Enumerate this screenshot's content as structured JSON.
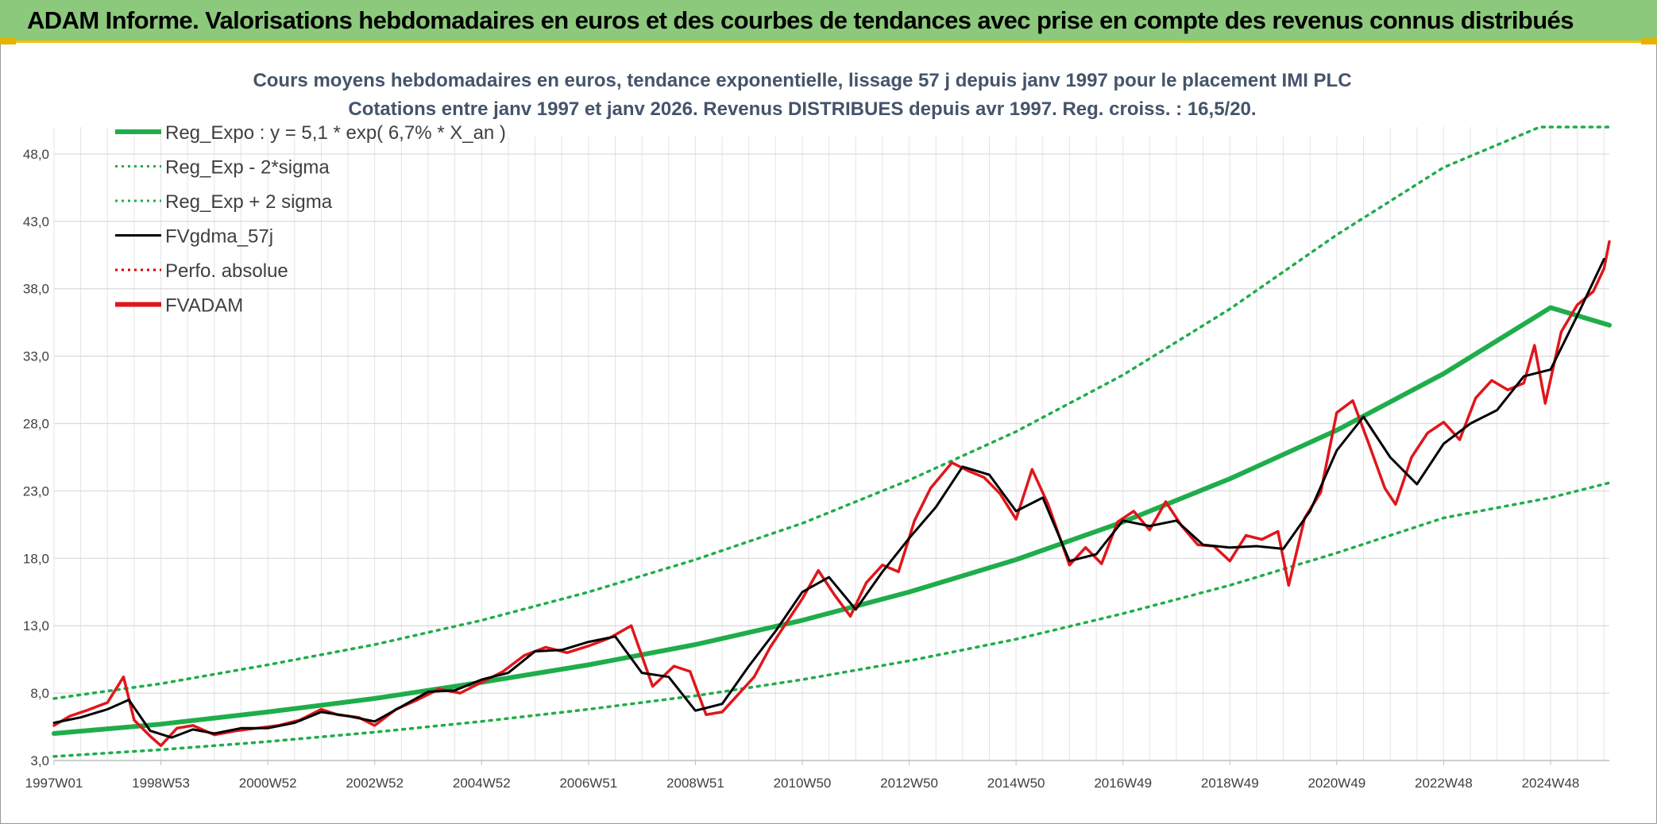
{
  "header": {
    "title": "ADAM Informe. Valorisations hebdomadaires en euros et des courbes de tendances avec prise en compte des revenus connus distribués"
  },
  "chart_data": {
    "type": "line",
    "title": "Cours moyens hebdomadaires en euros, tendance exponentielle, lissage 57 j depuis janv 1997 pour le placement IMI PLC",
    "subtitle": "Cotations entre janv 1997 et janv 2026. Revenus DISTRIBUES depuis avr 1997. Reg. croiss. : 16,5/20.",
    "xlabel": "",
    "ylabel": "",
    "ylim": [
      3.0,
      50.0
    ],
    "xlim": [
      1997.0,
      2026.1
    ],
    "y_ticks": [
      "3,0",
      "8,0",
      "13,0",
      "18,0",
      "23,0",
      "28,0",
      "33,0",
      "38,0",
      "43,0",
      "48,0"
    ],
    "y_tick_values": [
      3,
      8,
      13,
      18,
      23,
      28,
      33,
      38,
      43,
      48
    ],
    "x_ticks": [
      "1997W01",
      "1998W53",
      "2000W52",
      "2002W52",
      "2004W52",
      "2006W51",
      "2008W51",
      "2010W50",
      "2012W50",
      "2014W50",
      "2016W49",
      "2018W49",
      "2020W49",
      "2022W48",
      "2024W48"
    ],
    "x_tick_values": [
      1997.0,
      1999.0,
      2001.0,
      2003.0,
      2005.0,
      2007.0,
      2009.0,
      2011.0,
      2013.0,
      2015.0,
      2017.0,
      2019.0,
      2021.0,
      2023.0,
      2025.0
    ],
    "legend": [
      {
        "label": "Reg_Expo : y = 5,1 * exp( 6,7% *  X_an )",
        "color": "#1fad4b",
        "style": "solid-thick"
      },
      {
        "label": "Reg_Exp - 2*sigma",
        "color": "#1fad4b",
        "style": "dotted"
      },
      {
        "label": "Reg_Exp + 2 sigma",
        "color": "#1fad4b",
        "style": "dotted"
      },
      {
        "label": "FVgdma_57j",
        "color": "#000000",
        "style": "solid"
      },
      {
        "label": "Perfo. absolue",
        "color": "#d00000",
        "style": "dotted"
      },
      {
        "label": "FVADAM",
        "color": "#e0161b",
        "style": "solid-thick"
      }
    ],
    "series": [
      {
        "name": "Reg_Expo",
        "color": "#1fad4b",
        "x": [
          1997,
          1999,
          2001,
          2003,
          2005,
          2007,
          2009,
          2011,
          2013,
          2015,
          2017,
          2019,
          2021,
          2023,
          2025,
          2026.1
        ],
        "values": [
          5.0,
          5.7,
          6.6,
          7.6,
          8.8,
          10.1,
          11.6,
          13.4,
          15.5,
          17.9,
          20.7,
          23.9,
          27.5,
          31.7,
          36.6,
          35.3
        ]
      },
      {
        "name": "Reg_Exp - 2*sigma",
        "color": "#1fad4b",
        "x": [
          1997,
          1999,
          2001,
          2003,
          2005,
          2007,
          2009,
          2011,
          2013,
          2015,
          2017,
          2019,
          2021,
          2023,
          2025,
          2026.1
        ],
        "values": [
          3.3,
          3.8,
          4.4,
          5.1,
          5.9,
          6.8,
          7.8,
          9.0,
          10.4,
          12.0,
          13.9,
          16.0,
          18.4,
          21.0,
          22.5,
          23.6
        ]
      },
      {
        "name": "Reg_Exp + 2 sigma",
        "color": "#1fad4b",
        "x": [
          1997,
          1999,
          2001,
          2003,
          2005,
          2007,
          2009,
          2011,
          2013,
          2015,
          2017,
          2019,
          2021,
          2023,
          2024.8,
          2026.1
        ],
        "values": [
          7.6,
          8.7,
          10.1,
          11.6,
          13.4,
          15.5,
          17.9,
          20.6,
          23.8,
          27.4,
          31.6,
          36.5,
          42.0,
          47.0,
          50.0,
          50.0
        ]
      },
      {
        "name": "FVgdma_57j",
        "color": "#000000",
        "x": [
          1997.0,
          1997.5,
          1998.0,
          1998.4,
          1998.8,
          1999.2,
          1999.6,
          2000.0,
          2000.5,
          2001.0,
          2001.5,
          2002.0,
          2002.5,
          2003.0,
          2003.5,
          2004.0,
          2004.5,
          2005.0,
          2005.5,
          2006.0,
          2006.5,
          2007.0,
          2007.5,
          2008.0,
          2008.5,
          2009.0,
          2009.5,
          2010.0,
          2010.5,
          2011.0,
          2011.5,
          2012.0,
          2012.5,
          2013.0,
          2013.5,
          2014.0,
          2014.5,
          2015.0,
          2015.5,
          2016.0,
          2016.5,
          2017.0,
          2017.5,
          2018.0,
          2018.5,
          2019.0,
          2019.5,
          2020.0,
          2020.5,
          2021.0,
          2021.5,
          2022.0,
          2022.5,
          2023.0,
          2023.5,
          2024.0,
          2024.5,
          2025.0,
          2025.5,
          2026.0
        ],
        "values": [
          5.8,
          6.2,
          6.8,
          7.5,
          5.2,
          4.7,
          5.3,
          5.0,
          5.4,
          5.4,
          5.8,
          6.6,
          6.3,
          5.9,
          7.0,
          8.1,
          8.2,
          9.0,
          9.5,
          11.1,
          11.2,
          11.8,
          12.2,
          9.5,
          9.2,
          6.7,
          7.2,
          10.0,
          12.6,
          15.5,
          16.6,
          14.2,
          17.0,
          19.5,
          21.8,
          24.8,
          24.2,
          21.5,
          22.5,
          17.8,
          18.3,
          20.8,
          20.4,
          20.8,
          19.0,
          18.8,
          18.9,
          18.7,
          21.5,
          26.0,
          28.5,
          25.5,
          23.5,
          26.5,
          28.0,
          29.0,
          31.5,
          32.0,
          36.0,
          40.2
        ]
      },
      {
        "name": "FVADAM",
        "color": "#e0161b",
        "x": [
          1997.0,
          1997.3,
          1997.6,
          1998.0,
          1998.3,
          1998.5,
          1998.8,
          1999.0,
          1999.3,
          1999.6,
          2000.0,
          2000.4,
          2000.8,
          2001.2,
          2001.6,
          2002.0,
          2002.3,
          2002.7,
          2003.0,
          2003.4,
          2003.8,
          2004.2,
          2004.6,
          2005.0,
          2005.4,
          2005.8,
          2006.2,
          2006.6,
          2007.0,
          2007.4,
          2007.8,
          2008.2,
          2008.6,
          2008.9,
          2009.2,
          2009.5,
          2009.8,
          2010.1,
          2010.4,
          2010.7,
          2011.0,
          2011.3,
          2011.6,
          2011.9,
          2012.2,
          2012.5,
          2012.8,
          2013.1,
          2013.4,
          2013.8,
          2014.1,
          2014.4,
          2014.7,
          2015.0,
          2015.3,
          2015.6,
          2016.0,
          2016.3,
          2016.6,
          2016.9,
          2017.2,
          2017.5,
          2017.8,
          2018.1,
          2018.4,
          2018.7,
          2019.0,
          2019.3,
          2019.6,
          2019.9,
          2020.1,
          2020.4,
          2020.7,
          2021.0,
          2021.3,
          2021.6,
          2021.9,
          2022.1,
          2022.4,
          2022.7,
          2023.0,
          2023.3,
          2023.6,
          2023.9,
          2024.2,
          2024.5,
          2024.7,
          2024.9,
          2025.2,
          2025.5,
          2025.8,
          2026.0,
          2026.1
        ],
        "values": [
          5.6,
          6.3,
          6.7,
          7.3,
          9.2,
          6.0,
          4.8,
          4.1,
          5.4,
          5.6,
          4.9,
          5.2,
          5.4,
          5.6,
          6.0,
          6.8,
          6.4,
          6.2,
          5.6,
          6.8,
          7.5,
          8.3,
          8.0,
          8.8,
          9.6,
          10.8,
          11.4,
          11.0,
          11.5,
          12.1,
          13.0,
          8.5,
          10.0,
          9.6,
          6.4,
          6.6,
          7.9,
          9.2,
          11.4,
          13.2,
          15.0,
          17.1,
          15.3,
          13.7,
          16.2,
          17.5,
          17.0,
          20.8,
          23.2,
          25.1,
          24.5,
          24.0,
          22.8,
          20.9,
          24.6,
          22.0,
          17.5,
          18.8,
          17.6,
          20.7,
          21.5,
          20.1,
          22.2,
          20.4,
          19.0,
          18.9,
          17.8,
          19.7,
          19.4,
          20.0,
          16.0,
          21.0,
          22.9,
          28.8,
          29.7,
          26.5,
          23.2,
          22.0,
          25.5,
          27.3,
          28.1,
          26.8,
          29.9,
          31.2,
          30.5,
          31.0,
          33.8,
          29.5,
          34.8,
          36.8,
          37.8,
          39.5,
          41.5
        ]
      }
    ]
  }
}
